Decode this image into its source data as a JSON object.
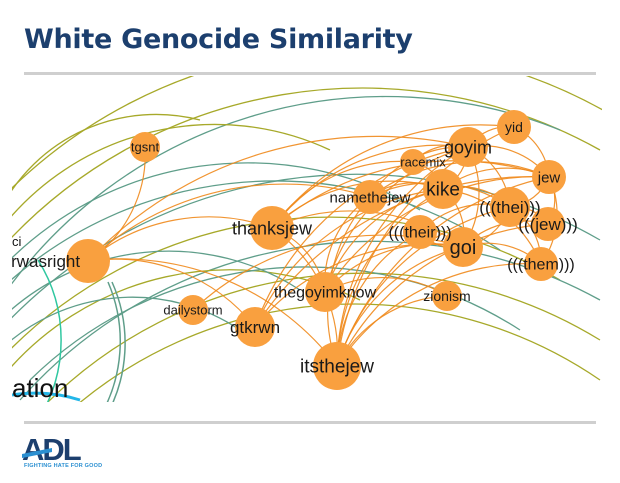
{
  "slide": {
    "title": "White Genocide Similarity"
  },
  "graph": {
    "colors": {
      "node": "#f9a03f",
      "edge": "#ef8a1c",
      "background_edges": [
        "#a7a92a",
        "#5f9e8a",
        "#2fc7a0",
        "#23b6e8"
      ],
      "title": "#1c3f6e"
    },
    "nodes": [
      {
        "id": "tgsnt",
        "label": "tgsnt"
      },
      {
        "id": "hitlerwasright",
        "label": "hitlerwasright"
      },
      {
        "id": "thanksjew",
        "label": "thanksjew"
      },
      {
        "id": "namethejew",
        "label": "namethejew"
      },
      {
        "id": "racemix",
        "label": "racemix"
      },
      {
        "id": "goyim",
        "label": "goyim"
      },
      {
        "id": "yid",
        "label": "yid"
      },
      {
        "id": "kike",
        "label": "kike"
      },
      {
        "id": "jew",
        "label": "jew"
      },
      {
        "id": "thei",
        "label": "(((thei)))"
      },
      {
        "id": "their",
        "label": "(((their)))"
      },
      {
        "id": "goi",
        "label": "goi"
      },
      {
        "id": "jew3",
        "label": "(((jew)))"
      },
      {
        "id": "them",
        "label": "(((them)))"
      },
      {
        "id": "zionism",
        "label": "zionism"
      },
      {
        "id": "thegoyimknow",
        "label": "thegoyimknow"
      },
      {
        "id": "dailystorm",
        "label": "dailystorm"
      },
      {
        "id": "gtkrwn",
        "label": "gtkrwn"
      },
      {
        "id": "itsthejew",
        "label": "itsthejew"
      }
    ],
    "edges": [
      [
        "tgsnt",
        "hitlerwasright"
      ],
      [
        "hitlerwasright",
        "thanksjew"
      ],
      [
        "hitlerwasright",
        "goyim"
      ],
      [
        "hitlerwasright",
        "namethejew"
      ],
      [
        "hitlerwasright",
        "itsthejew"
      ],
      [
        "hitlerwasright",
        "gtkrwn"
      ],
      [
        "thanksjew",
        "goyim"
      ],
      [
        "thanksjew",
        "yid"
      ],
      [
        "thanksjew",
        "kike"
      ],
      [
        "thanksjew",
        "jew"
      ],
      [
        "thanksjew",
        "goi"
      ],
      [
        "thanksjew",
        "itsthejew"
      ],
      [
        "thanksjew",
        "thegoyimknow"
      ],
      [
        "thanksjew",
        "racemix"
      ],
      [
        "itsthejew",
        "goyim"
      ],
      [
        "itsthejew",
        "kike"
      ],
      [
        "itsthejew",
        "yid"
      ],
      [
        "itsthejew",
        "jew"
      ],
      [
        "itsthejew",
        "goi"
      ],
      [
        "itsthejew",
        "thei"
      ],
      [
        "itsthejew",
        "their"
      ],
      [
        "itsthejew",
        "them"
      ],
      [
        "itsthejew",
        "namethejew"
      ],
      [
        "itsthejew",
        "zionism"
      ],
      [
        "itsthejew",
        "jew3"
      ],
      [
        "thegoyimknow",
        "goyim"
      ],
      [
        "thegoyimknow",
        "kike"
      ],
      [
        "thegoyimknow",
        "goi"
      ],
      [
        "thegoyimknow",
        "jew"
      ],
      [
        "thegoyimknow",
        "namethejew"
      ],
      [
        "thegoyimknow",
        "zionism"
      ],
      [
        "gtkrwn",
        "goyim"
      ],
      [
        "gtkrwn",
        "kike"
      ],
      [
        "gtkrwn",
        "goi"
      ],
      [
        "gtkrwn",
        "jew"
      ],
      [
        "dailystorm",
        "goi"
      ],
      [
        "namethejew",
        "goyim"
      ],
      [
        "namethejew",
        "kike"
      ],
      [
        "namethejew",
        "thei"
      ],
      [
        "namethejew",
        "jew"
      ],
      [
        "goyim",
        "yid"
      ],
      [
        "goyim",
        "kike"
      ],
      [
        "goyim",
        "jew"
      ],
      [
        "goyim",
        "goi"
      ],
      [
        "goyim",
        "thei"
      ],
      [
        "kike",
        "goi"
      ],
      [
        "kike",
        "thei"
      ],
      [
        "kike",
        "jew"
      ],
      [
        "kike",
        "them"
      ],
      [
        "jew",
        "thei"
      ],
      [
        "jew",
        "jew3"
      ],
      [
        "jew",
        "them"
      ],
      [
        "yid",
        "jew"
      ],
      [
        "thei",
        "jew3"
      ],
      [
        "thei",
        "goi"
      ],
      [
        "thei",
        "them"
      ],
      [
        "goi",
        "their"
      ],
      [
        "goi",
        "them"
      ],
      [
        "goi",
        "jew3"
      ],
      [
        "racemix",
        "kike"
      ],
      [
        "racemix",
        "goyim"
      ],
      [
        "their",
        "thei"
      ]
    ],
    "edge_fragments": [
      "ation",
      "ci"
    ]
  },
  "footer": {
    "logo_text": "ADL",
    "tagline": "FIGHTING HATE FOR GOOD"
  }
}
